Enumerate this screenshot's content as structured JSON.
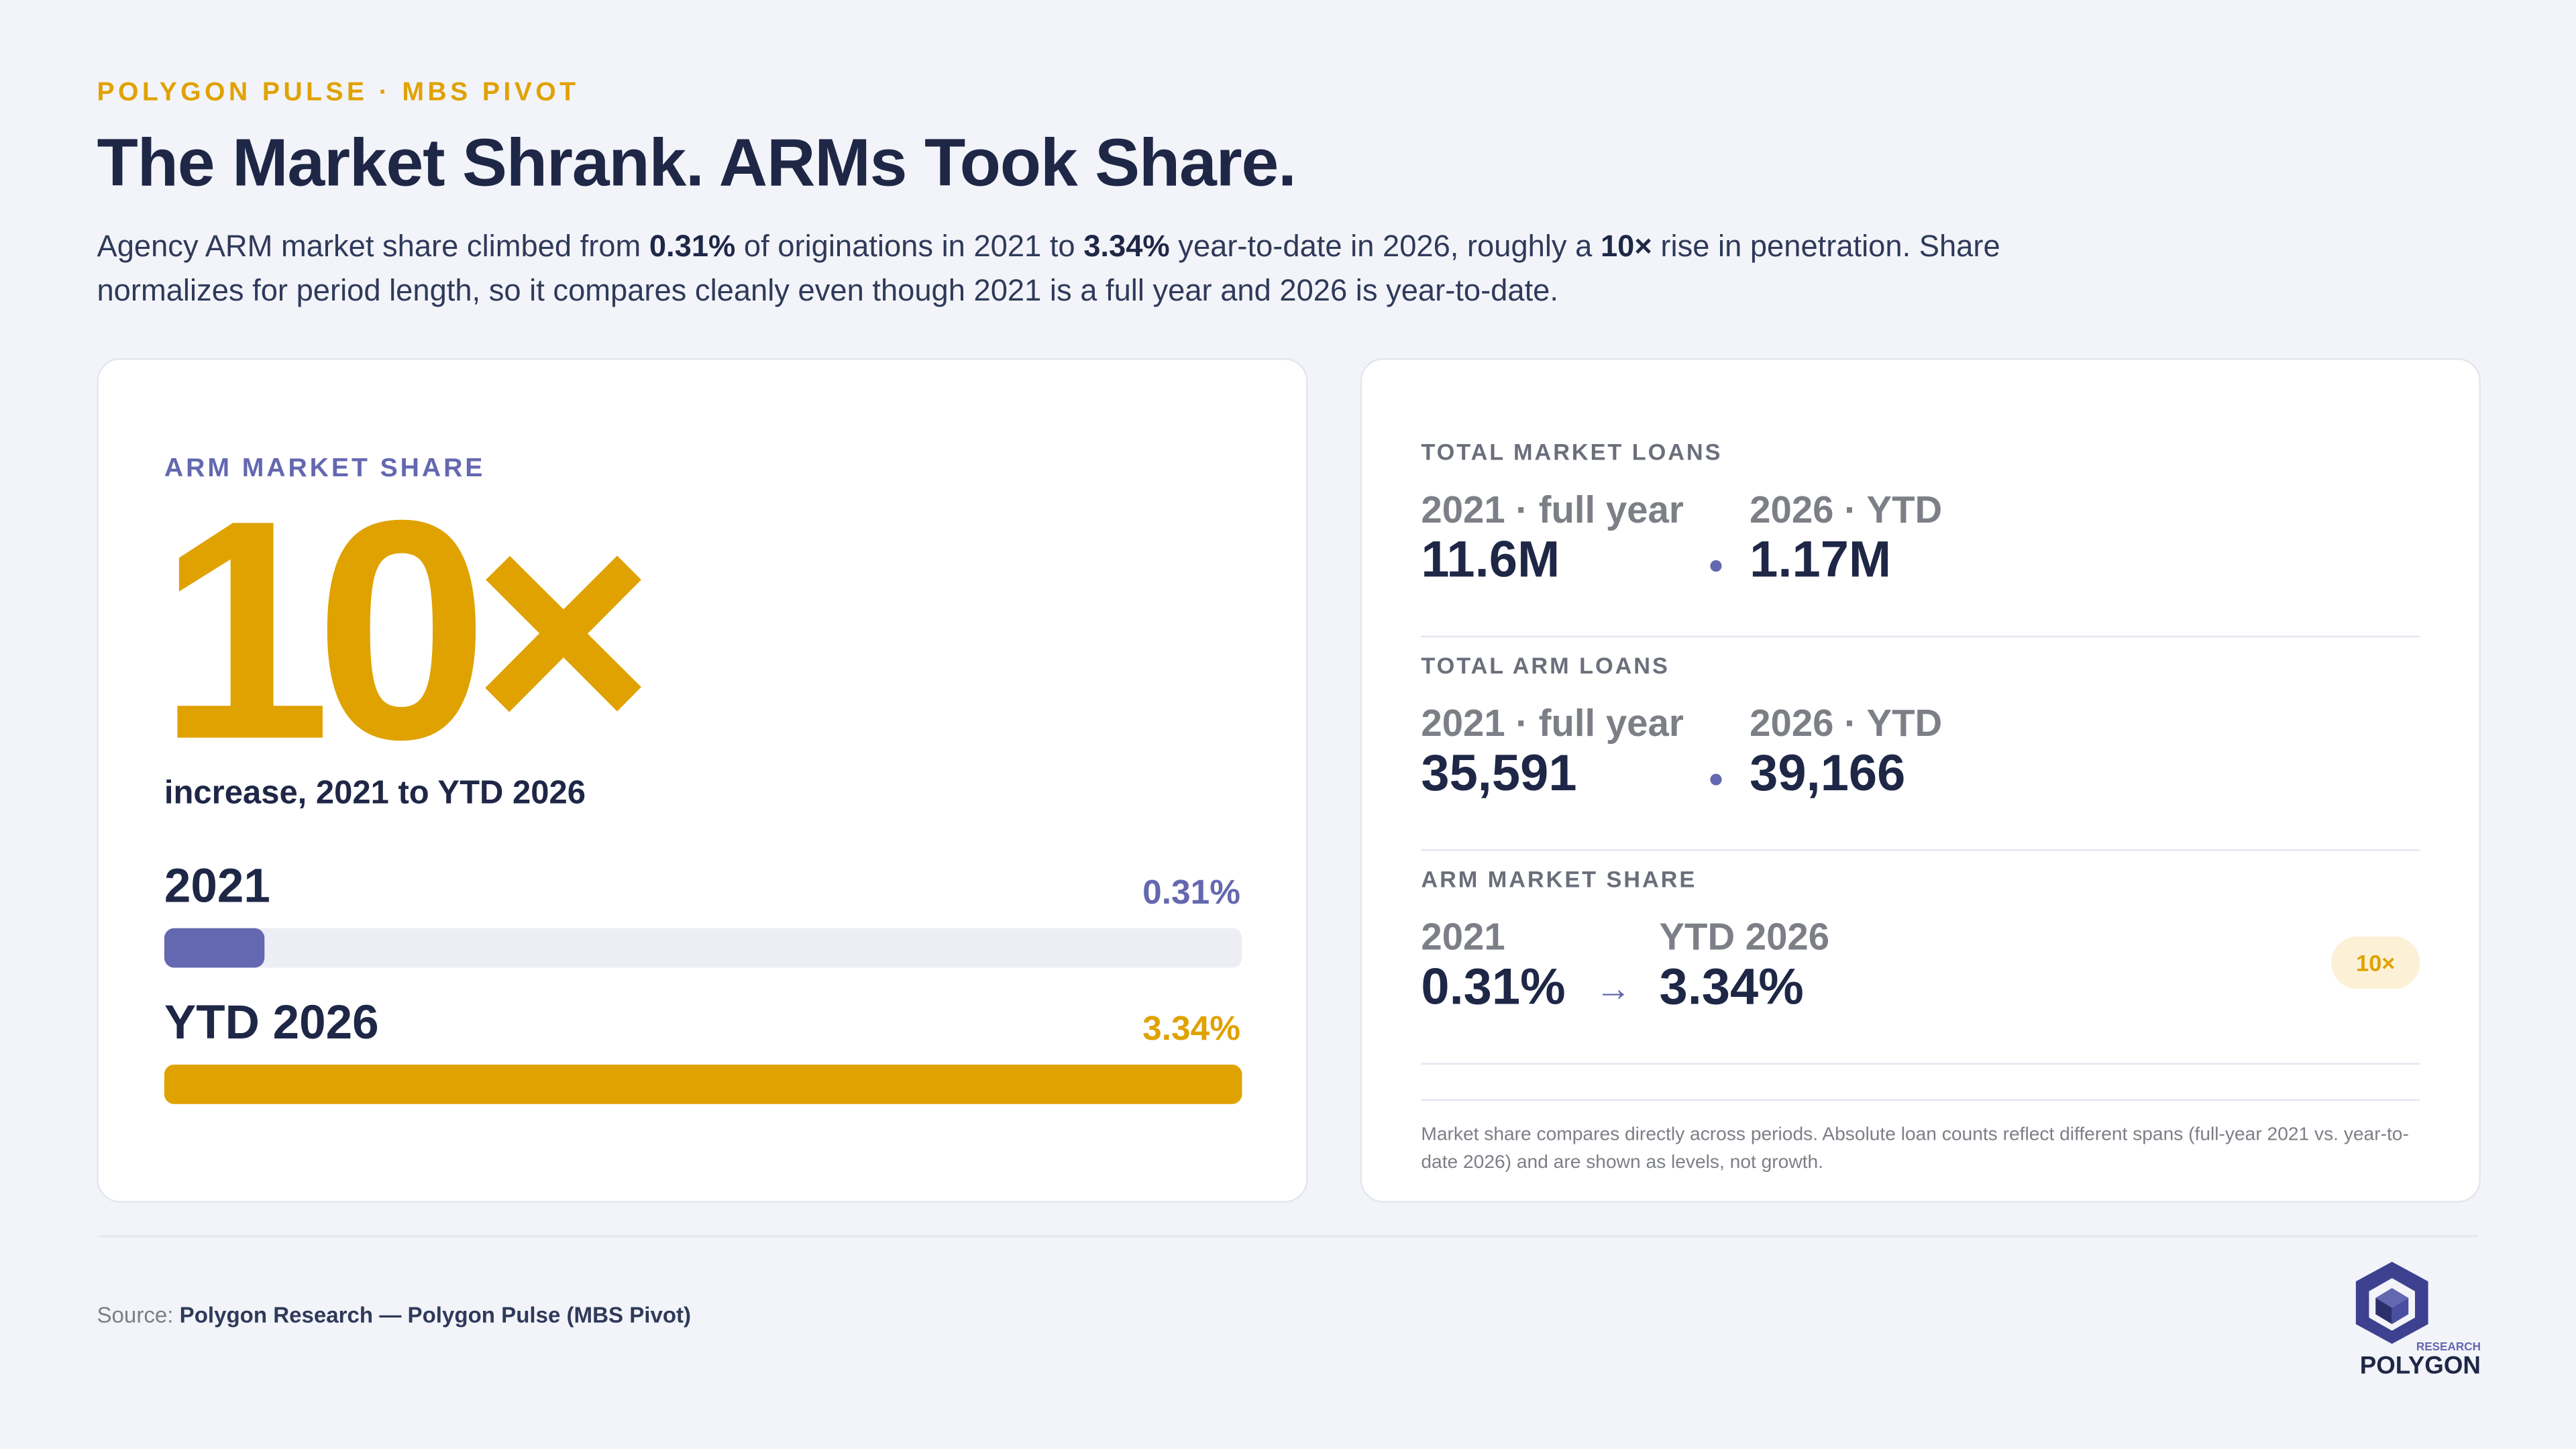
{
  "header": {
    "kicker": "POLYGON PULSE · MBS PIVOT",
    "title": "The Market Shrank. ARMs Took Share.",
    "intro": [
      "Agency ARM market share climbed from ",
      "0.31%",
      " of originations in 2021 to ",
      "3.34%",
      " year-to-date in 2026, roughly a ",
      "10×",
      " rise in penetration. Share normalizes for period length, so it compares cleanly even though 2021 is a full year and 2026 is year-to-date."
    ]
  },
  "hero": {
    "label": "ARM MARKET SHARE",
    "big": "10×",
    "caption": "increase, 2021 to YTD 2026",
    "bars": [
      {
        "label": "2021",
        "value": 0.31,
        "value_label": "0.31%",
        "color": "#6468b0"
      },
      {
        "label": "YTD 2026",
        "value": 3.34,
        "value_label": "3.34%",
        "color": "#e0a200"
      }
    ]
  },
  "stats": {
    "sections": [
      {
        "title": "TOTAL MARKET LOANS",
        "left": {
          "period": "2021 · full year",
          "value": "11.6M"
        },
        "right": {
          "period": "2026 · YTD",
          "value": "1.17M"
        }
      },
      {
        "title": "TOTAL ARM LOANS",
        "left": {
          "period": "2021 · full year",
          "value": "35,591"
        },
        "right": {
          "period": "2026 · YTD",
          "value": "39,166"
        }
      },
      {
        "title": "ARM MARKET SHARE",
        "left": {
          "period": "2021",
          "value": "0.31%"
        },
        "separator": "→",
        "right": {
          "period": "YTD 2026",
          "value": "3.34%"
        },
        "badge": "10×"
      }
    ],
    "note": "Market share compares directly across periods. Absolute loan counts reflect different spans (full-year 2021 vs. year-to-date 2026) and are shown as levels, not growth."
  },
  "footer": {
    "source_prefix": "Source:",
    "source": "Polygon Research — Polygon Pulse (MBS Pivot)",
    "logo_sub": "RESEARCH",
    "logo_name": "POLYGON"
  }
}
